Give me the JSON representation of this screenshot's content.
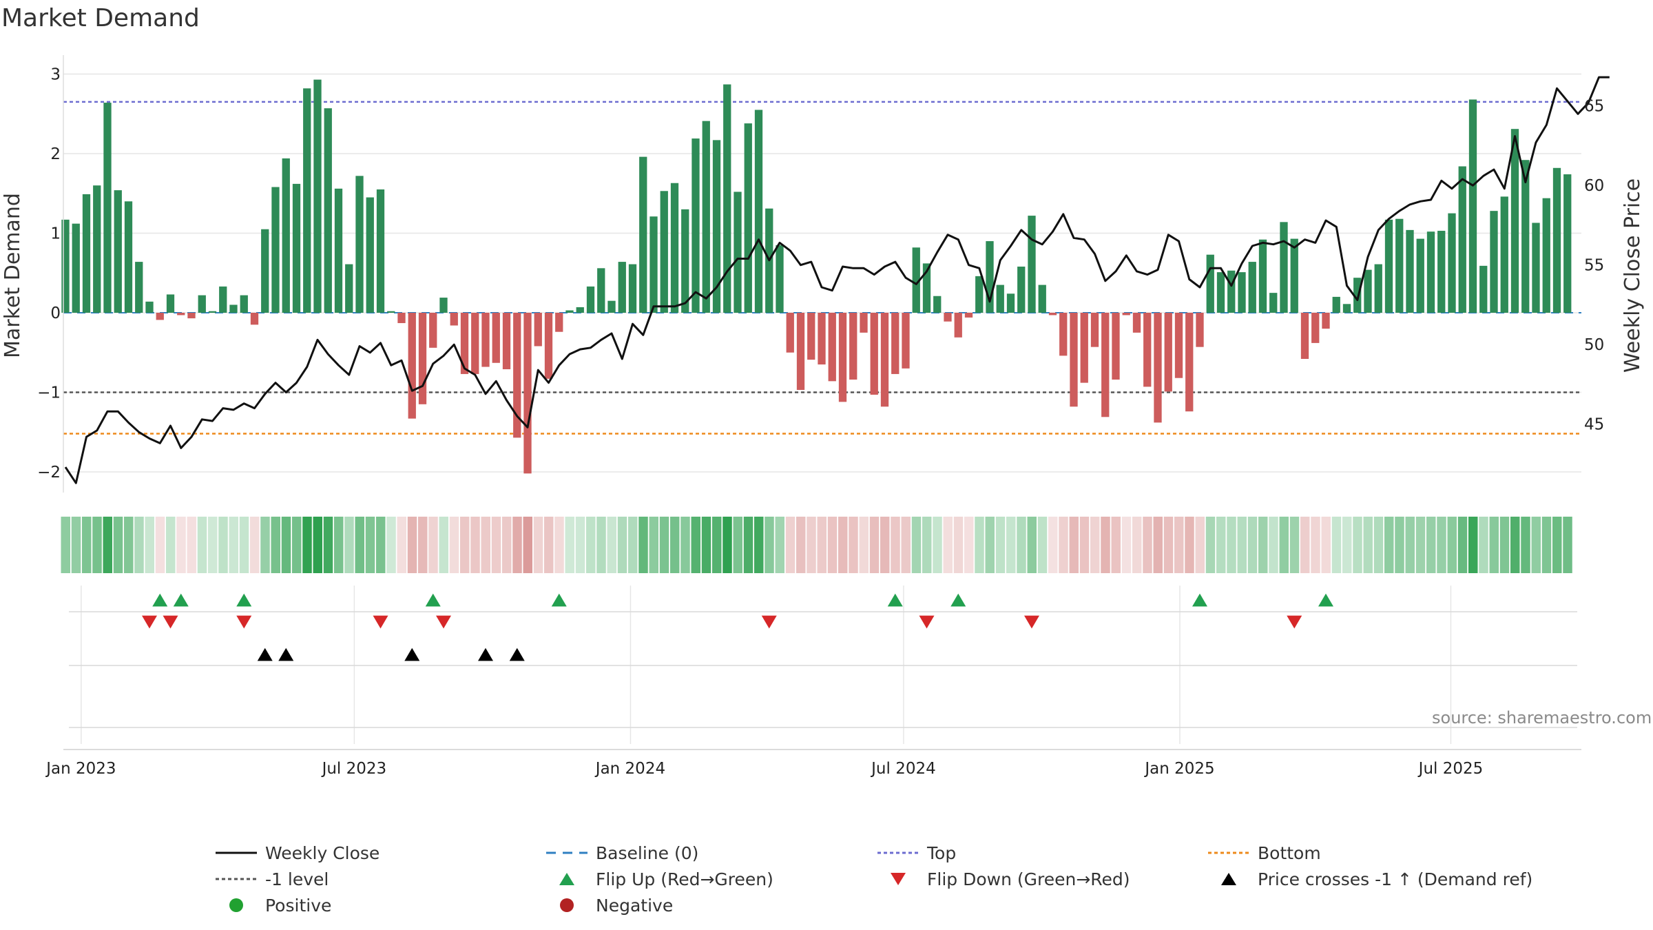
{
  "chart_data": {
    "type": "bar",
    "title": "Market Demand",
    "ylabel": "Market Demand",
    "y2label": "Weekly Close Price",
    "ylim": [
      -2.3,
      3.2
    ],
    "y2lim": [
      40.3,
      67.8
    ],
    "yticks": [
      3,
      2,
      1,
      0,
      -1,
      -2
    ],
    "ytick_labels": [
      "3",
      "2",
      "1",
      "0",
      "−1",
      "−2"
    ],
    "y2ticks": [
      65,
      60,
      55,
      50,
      45
    ],
    "y2tick_labels": [
      "65",
      "60",
      "55",
      "50",
      "45"
    ],
    "xticks": [
      {
        "label": "Jan 2023",
        "week": 1.5
      },
      {
        "label": "Jul 2023",
        "week": 27.5
      },
      {
        "label": "Jan 2024",
        "week": 53.8
      },
      {
        "label": "Jul 2024",
        "week": 79.8
      },
      {
        "label": "Jan 2025",
        "week": 106.1
      },
      {
        "label": "Jul 2025",
        "week": 131.9
      }
    ],
    "levels": {
      "top": 2.65,
      "minus_one": -1,
      "bottom": -1.52,
      "baseline": 0
    },
    "demand": [
      1.17,
      1.12,
      1.49,
      1.6,
      2.64,
      1.54,
      1.4,
      0.64,
      0.14,
      -0.09,
      0.23,
      -0.03,
      -0.07,
      0.22,
      0.02,
      0.33,
      0.1,
      0.22,
      -0.15,
      1.05,
      1.58,
      1.94,
      1.62,
      2.82,
      2.93,
      2.57,
      1.56,
      0.61,
      1.72,
      1.45,
      1.55,
      0.02,
      -0.13,
      -1.33,
      -1.15,
      -0.44,
      0.19,
      -0.16,
      -0.77,
      -0.77,
      -0.68,
      -0.63,
      -0.71,
      -1.57,
      -2.02,
      -0.42,
      -0.83,
      -0.24,
      0.03,
      0.07,
      0.33,
      0.56,
      0.15,
      0.64,
      0.61,
      1.96,
      1.21,
      1.53,
      1.63,
      1.3,
      2.19,
      2.41,
      2.17,
      2.87,
      1.52,
      2.38,
      2.55,
      1.31,
      0.85,
      -0.5,
      -0.97,
      -0.59,
      -0.65,
      -0.86,
      -1.12,
      -0.84,
      -0.25,
      -1.03,
      -1.18,
      -0.77,
      -0.7,
      0.82,
      0.62,
      0.21,
      -0.11,
      -0.31,
      -0.06,
      0.46,
      0.9,
      0.35,
      0.24,
      0.58,
      1.22,
      0.35,
      -0.03,
      -0.54,
      -1.18,
      -0.88,
      -0.43,
      -1.31,
      -0.84,
      -0.03,
      -0.25,
      -0.93,
      -1.38,
      -0.99,
      -0.82,
      -1.24,
      -0.43,
      0.73,
      0.51,
      0.53,
      0.51,
      0.64,
      0.92,
      0.25,
      1.14,
      0.93,
      -0.58,
      -0.38,
      -0.2,
      0.2,
      0.11,
      0.44,
      0.54,
      0.61,
      1.17,
      1.18,
      1.04,
      0.93,
      1.02,
      1.03,
      1.25,
      1.84,
      2.68,
      0.59,
      1.28,
      1.46,
      2.31,
      1.92,
      1.13,
      1.44,
      1.82,
      1.74
    ],
    "weekly_close": [
      42.3,
      41.3,
      44.2,
      44.6,
      45.8,
      45.8,
      45.1,
      44.5,
      44.1,
      43.8,
      44.9,
      43.5,
      44.2,
      45.3,
      45.2,
      46.0,
      45.9,
      46.3,
      46.0,
      46.9,
      47.6,
      47.0,
      47.6,
      48.6,
      50.3,
      49.4,
      48.7,
      48.1,
      49.9,
      49.5,
      50.1,
      48.7,
      49.0,
      47.1,
      47.4,
      48.8,
      49.3,
      50.0,
      48.5,
      48.1,
      46.9,
      47.7,
      46.5,
      45.5,
      44.8,
      48.4,
      47.6,
      48.7,
      49.4,
      49.7,
      49.8,
      50.3,
      50.7,
      49.1,
      51.3,
      50.6,
      52.4,
      52.4,
      52.4,
      52.6,
      53.3,
      52.9,
      53.6,
      54.6,
      55.4,
      55.4,
      56.6,
      55.3,
      56.4,
      55.9,
      55.0,
      55.2,
      53.6,
      53.4,
      54.9,
      54.8,
      54.8,
      54.4,
      54.9,
      55.2,
      54.2,
      53.8,
      54.6,
      55.8,
      56.9,
      56.6,
      55.0,
      54.8,
      52.7,
      55.3,
      56.2,
      57.2,
      56.6,
      56.3,
      57.1,
      58.2,
      56.7,
      56.6,
      55.7,
      54.0,
      54.6,
      55.6,
      54.6,
      54.4,
      54.7,
      56.9,
      56.5,
      54.1,
      53.6,
      54.8,
      54.8,
      53.7,
      55.1,
      56.2,
      56.4,
      56.3,
      56.5,
      56.1,
      56.6,
      56.4,
      57.8,
      57.4,
      53.7,
      52.8,
      55.5,
      57.2,
      57.9,
      58.4,
      58.8,
      59.0,
      59.1,
      60.3,
      59.8,
      60.4,
      60.0,
      60.6,
      61.0,
      59.8,
      63.1,
      60.2,
      62.7,
      63.8,
      66.1,
      65.3,
      64.5,
      65.2,
      66.8,
      66.8
    ],
    "flip_up_weeks": [
      9,
      11,
      17,
      35,
      47,
      79,
      85,
      108,
      120
    ],
    "flip_down_weeks": [
      8,
      10,
      17,
      30,
      36,
      67,
      82,
      92,
      117
    ],
    "price_cross_weeks": [
      19,
      21,
      33,
      40,
      43
    ],
    "legend": [
      {
        "label": "Weekly Close",
        "marker": "solid-line",
        "color": "#111111"
      },
      {
        "label": "Baseline (0)",
        "marker": "dashed-line",
        "color": "#2f7fc1"
      },
      {
        "label": "Top",
        "marker": "dotted-line",
        "color": "#6c6cd0"
      },
      {
        "label": "Bottom",
        "marker": "dotted-line",
        "color": "#ee8a1b"
      },
      {
        "label": "-1 level",
        "marker": "dotted-line",
        "color": "#555555"
      },
      {
        "label": "Flip Up (Red→Green)",
        "marker": "triangle-up",
        "color": "#22a04f"
      },
      {
        "label": "Flip Down (Green→Red)",
        "marker": "triangle-down",
        "color": "#d62728"
      },
      {
        "label": "Price crosses -1 ↑ (Demand ref)",
        "marker": "triangle-up",
        "color": "#000000"
      },
      {
        "label": "Positive",
        "marker": "circle",
        "color": "#21a131"
      },
      {
        "label": "Negative",
        "marker": "circle",
        "color": "#b22222"
      }
    ],
    "legend_position": "bottom",
    "source": "source: sharemaestro.com"
  },
  "colors": {
    "positive_bar": "#2e8b57",
    "negative_bar": "#cd5c5c",
    "strip_positive": "#2ea04f",
    "strip_negative": "#c0504d",
    "flip_up": "#22a04f",
    "flip_down": "#d62728",
    "cross": "#000000",
    "grid": "#e6e6e6",
    "price_line": "#111111"
  }
}
